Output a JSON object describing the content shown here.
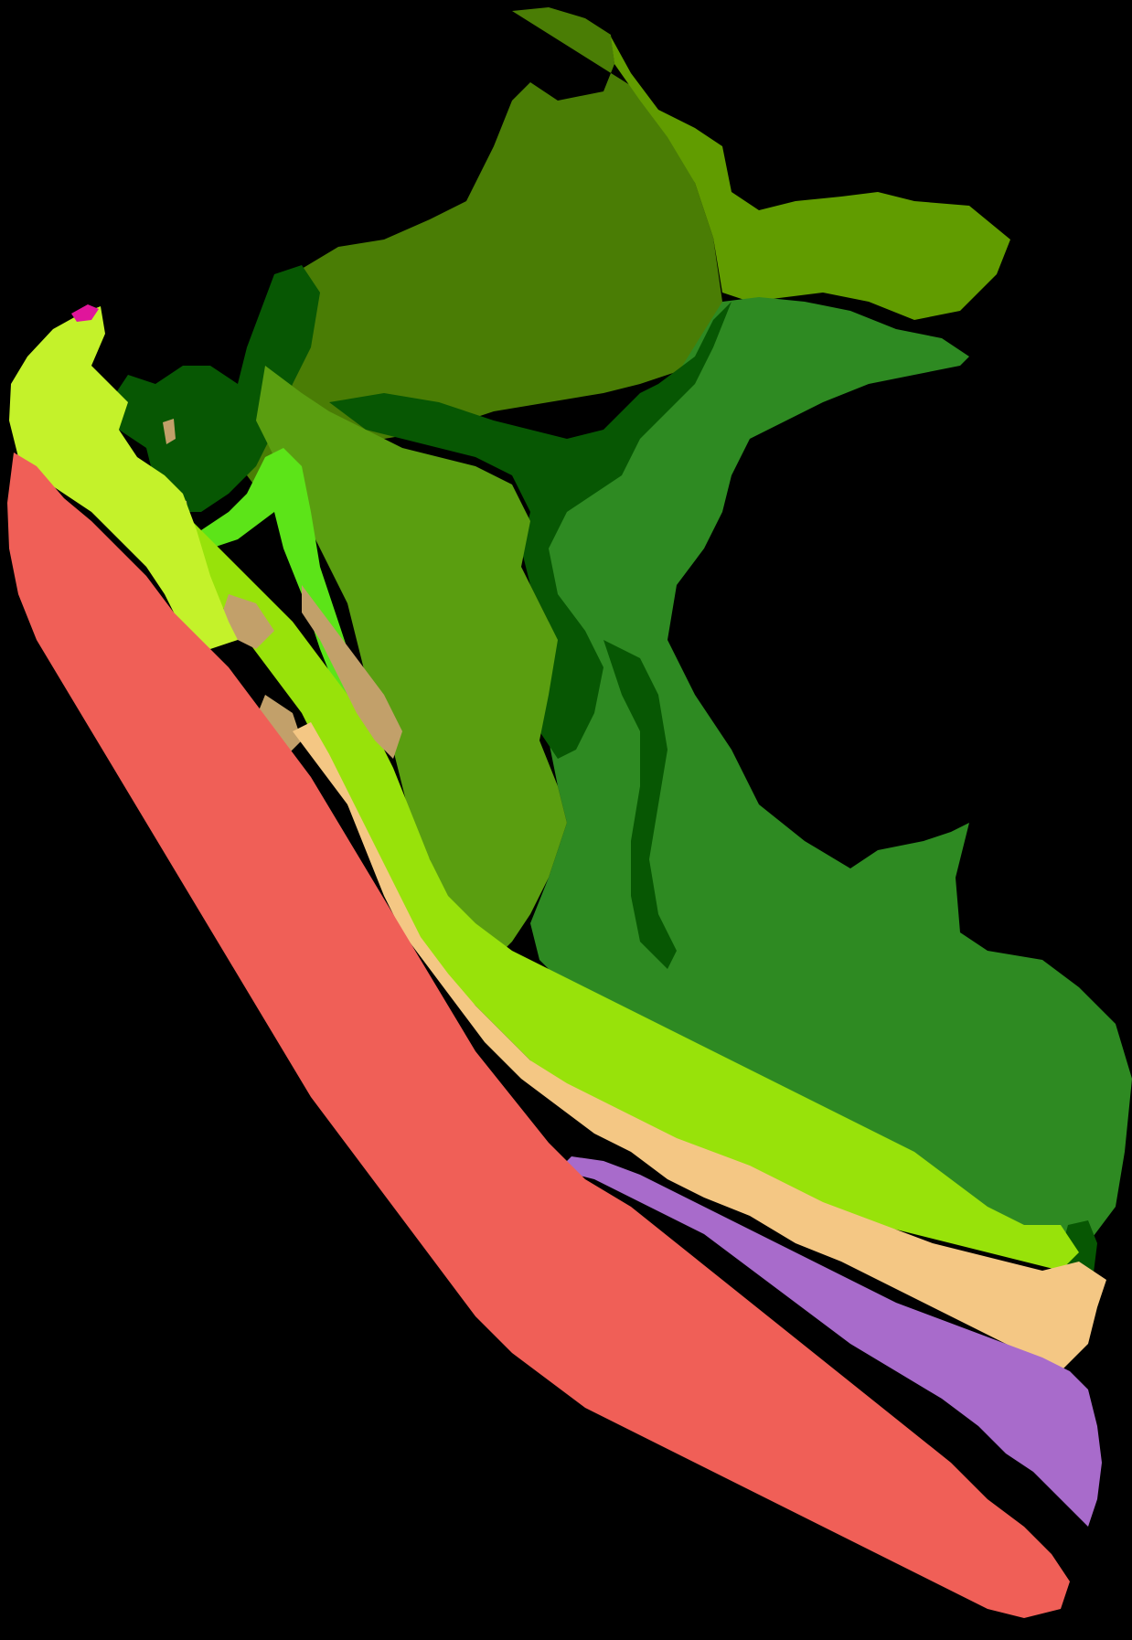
{
  "map": {
    "background_color": "#000000",
    "zones": [
      {
        "id": "coastal-desert",
        "color": "#f05f57"
      },
      {
        "id": "dry-forest-north",
        "color": "#c4f22a"
      },
      {
        "id": "mangrove",
        "color": "#e0159b"
      },
      {
        "id": "andean-slopes-west",
        "color": "#f4c784"
      },
      {
        "id": "puna-south",
        "color": "#a86bcb"
      },
      {
        "id": "high-andes",
        "color": "#98e20a"
      },
      {
        "id": "inter-andean-valleys",
        "color": "#c2a06a"
      },
      {
        "id": "paramo-north",
        "color": "#5ce418"
      },
      {
        "id": "yungas",
        "color": "#5a9e10"
      },
      {
        "id": "amazon-lowland-northwest",
        "color": "#4a7d05"
      },
      {
        "id": "amazon-lowland-northeast",
        "color": "#619c00"
      },
      {
        "id": "amazon-lowland-south",
        "color": "#2e8a22"
      },
      {
        "id": "flooded-forest",
        "color": "#075703"
      }
    ]
  }
}
